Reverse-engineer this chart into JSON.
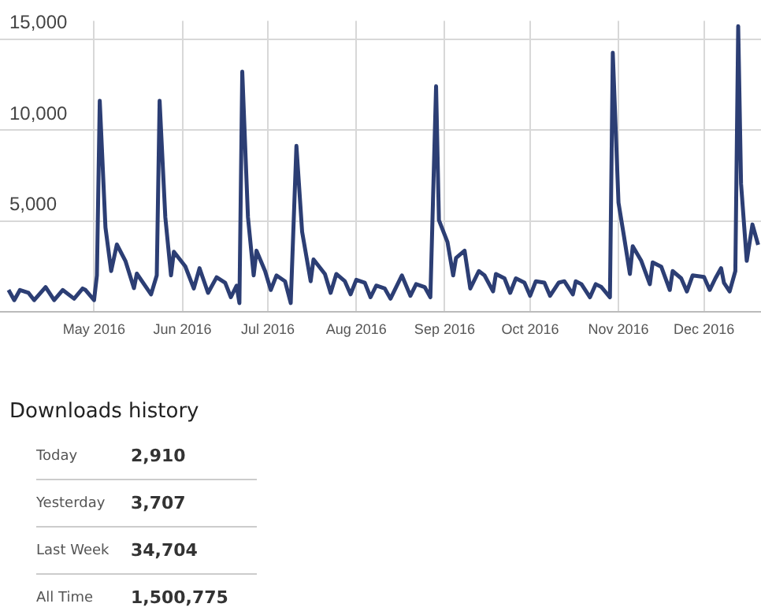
{
  "chart_data": {
    "type": "line",
    "x": [
      "2016-04-01",
      "2016-04-03",
      "2016-04-05",
      "2016-04-08",
      "2016-04-10",
      "2016-04-14",
      "2016-04-17",
      "2016-04-20",
      "2016-04-24",
      "2016-04-27",
      "2016-04-28",
      "2016-05-01",
      "2016-05-02",
      "2016-05-03",
      "2016-05-05",
      "2016-05-07",
      "2016-05-09",
      "2016-05-12",
      "2016-05-15",
      "2016-05-16",
      "2016-05-21",
      "2016-05-23",
      "2016-05-24",
      "2016-05-26",
      "2016-05-28",
      "2016-05-29",
      "2016-06-02",
      "2016-06-05",
      "2016-06-07",
      "2016-06-10",
      "2016-06-13",
      "2016-06-16",
      "2016-06-18",
      "2016-06-20",
      "2016-06-21",
      "2016-06-22",
      "2016-06-24",
      "2016-06-26",
      "2016-06-27",
      "2016-06-30",
      "2016-07-02",
      "2016-07-04",
      "2016-07-07",
      "2016-07-09",
      "2016-07-11",
      "2016-07-13",
      "2016-07-16",
      "2016-07-17",
      "2016-07-21",
      "2016-07-23",
      "2016-07-25",
      "2016-07-28",
      "2016-07-30",
      "2016-08-01",
      "2016-08-04",
      "2016-08-06",
      "2016-08-08",
      "2016-08-11",
      "2016-08-13",
      "2016-08-17",
      "2016-08-20",
      "2016-08-22",
      "2016-08-25",
      "2016-08-27",
      "2016-08-29",
      "2016-08-30",
      "2016-09-02",
      "2016-09-04",
      "2016-09-05",
      "2016-09-08",
      "2016-09-10",
      "2016-09-13",
      "2016-09-15",
      "2016-09-18",
      "2016-09-19",
      "2016-09-22",
      "2016-09-24",
      "2016-09-26",
      "2016-09-29",
      "2016-10-01",
      "2016-10-03",
      "2016-10-06",
      "2016-10-08",
      "2016-10-11",
      "2016-10-13",
      "2016-10-16",
      "2016-10-17",
      "2016-10-19",
      "2016-10-22",
      "2016-10-24",
      "2016-10-26",
      "2016-10-29",
      "2016-10-30",
      "2016-11-01",
      "2016-11-03",
      "2016-11-05",
      "2016-11-06",
      "2016-11-09",
      "2016-11-12",
      "2016-11-13",
      "2016-11-16",
      "2016-11-19",
      "2016-11-20",
      "2016-11-23",
      "2016-11-25",
      "2016-11-27",
      "2016-12-01",
      "2016-12-03",
      "2016-12-05",
      "2016-12-07",
      "2016-12-08",
      "2016-12-10",
      "2016-12-12",
      "2016-12-13",
      "2016-12-14",
      "2016-12-16",
      "2016-12-18",
      "2016-12-20"
    ],
    "series": [
      {
        "color": "#2c3e74",
        "values": [
          1200,
          640,
          1200,
          1040,
          640,
          1360,
          640,
          1200,
          720,
          1280,
          1200,
          640,
          2000,
          11600,
          4640,
          2240,
          3700,
          2800,
          1300,
          2100,
          960,
          2000,
          11600,
          5200,
          2000,
          3300,
          2500,
          1280,
          2400,
          1040,
          1900,
          1600,
          800,
          1440,
          480,
          13200,
          5200,
          2000,
          3360,
          2240,
          1200,
          2000,
          1680,
          480,
          9120,
          4400,
          1680,
          2880,
          2080,
          1040,
          2080,
          1680,
          960,
          1760,
          1600,
          800,
          1440,
          1280,
          720,
          2000,
          880,
          1520,
          1360,
          800,
          12400,
          5040,
          3840,
          2000,
          2960,
          3360,
          1280,
          2240,
          2000,
          1120,
          2080,
          1840,
          1040,
          1840,
          1600,
          880,
          1680,
          1600,
          880,
          1600,
          1680,
          960,
          1680,
          1520,
          800,
          1520,
          1360,
          800,
          14240,
          6000,
          4080,
          2080,
          3600,
          2800,
          1520,
          2720,
          2480,
          1200,
          2240,
          1840,
          1120,
          2000,
          1920,
          1200,
          1840,
          2400,
          1600,
          1120,
          2240,
          15700,
          7040,
          2800,
          4800,
          3680
        ]
      }
    ],
    "xlim": [
      "2016-03-29",
      "2016-12-21"
    ],
    "xticks": [
      {
        "value": "2016-05-01",
        "label": "May 2016"
      },
      {
        "value": "2016-06-01",
        "label": "Jun 2016"
      },
      {
        "value": "2016-07-01",
        "label": "Jul 2016"
      },
      {
        "value": "2016-08-01",
        "label": "Aug 2016"
      },
      {
        "value": "2016-09-01",
        "label": "Sep 2016"
      },
      {
        "value": "2016-10-01",
        "label": "Oct 2016"
      },
      {
        "value": "2016-11-01",
        "label": "Nov 2016"
      },
      {
        "value": "2016-12-01",
        "label": "Dec 2016"
      }
    ],
    "ylim": [
      0,
      16000
    ],
    "yticks": [
      {
        "value": 0,
        "label": null
      },
      {
        "value": 5000,
        "label": "5,000"
      },
      {
        "value": 10000,
        "label": "10,000"
      },
      {
        "value": 15000,
        "label": "15,000"
      }
    ],
    "grid": true,
    "marker": "none",
    "line_style": "solid",
    "annotations": [
      "Downloads history",
      "Today",
      "2,910",
      "Yesterday",
      "3,707",
      "Last Week",
      "34,704",
      "All Time",
      "1,500,775"
    ]
  }
}
